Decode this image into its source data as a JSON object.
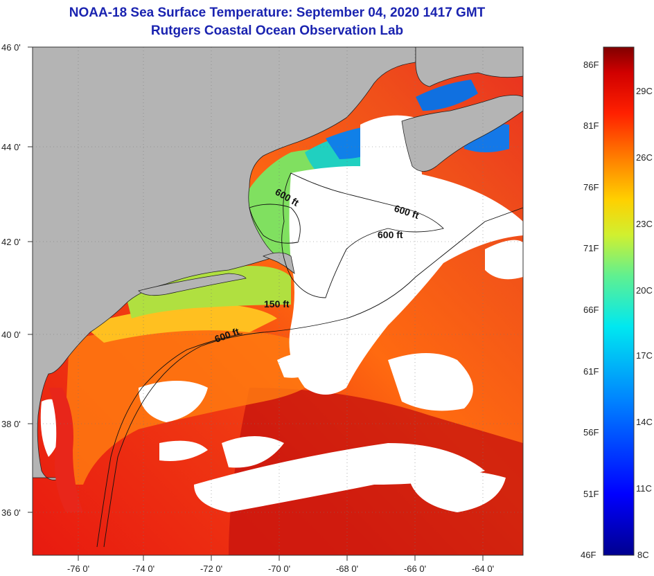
{
  "title": {
    "line1": "NOAA-18 Sea Surface Temperature:  September 04, 2020 1417 GMT",
    "line2": "Rutgers Coastal Ocean Observation Lab"
  },
  "lat_labels": [
    "46 0'",
    "44 0'",
    "42 0'",
    "40 0'",
    "38 0'",
    "36 0'"
  ],
  "lon_labels": [
    "-76 0'",
    "-74 0'",
    "-72 0'",
    "-70 0'",
    "-68 0'",
    "-66 0'",
    "-64 0'"
  ],
  "contour_labels": [
    "600 ft",
    "600 ft",
    "600 ft",
    "150 ft",
    "600 ft"
  ],
  "colors": {
    "land": "#b4b4b4",
    "cloud": "#ffffff",
    "border": "#333333"
  },
  "colorbar": {
    "fahrenheit": [
      "86F",
      "81F",
      "76F",
      "71F",
      "66F",
      "61F",
      "56F",
      "51F",
      "46F"
    ],
    "celsius": [
      "29C",
      "26C",
      "23C",
      "20C",
      "17C",
      "14C",
      "11C",
      "8C"
    ]
  }
}
